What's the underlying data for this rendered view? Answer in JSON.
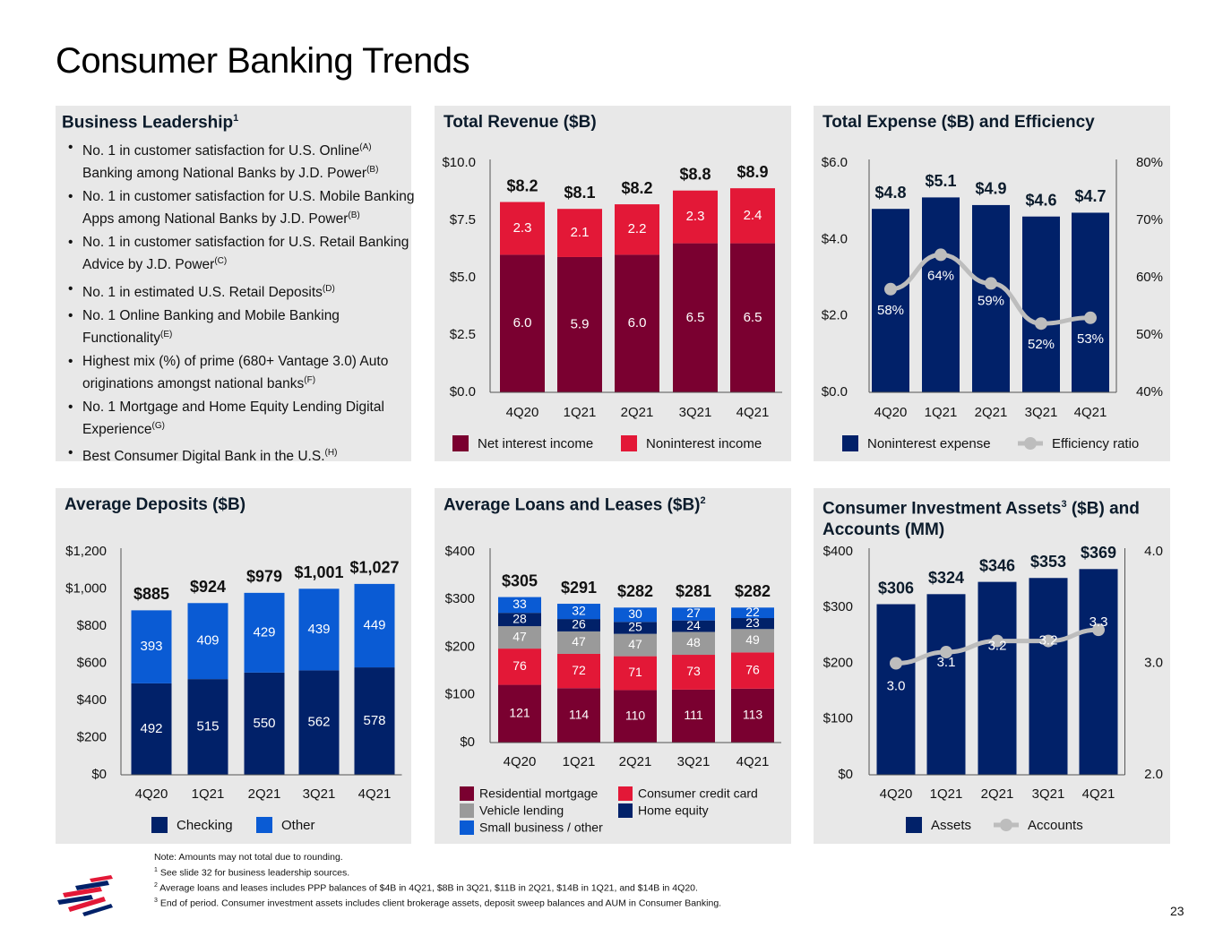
{
  "page": {
    "title": "Consumer Banking Trends",
    "page_number": "23"
  },
  "leadership": {
    "title": "Business Leadership",
    "title_sup": "1",
    "items": [
      {
        "text": "No. 1 in customer satisfaction for U.S. Online",
        "sup1": "(A)",
        "text2": " Banking among National Banks by J.D. Power",
        "sup2": "(B)"
      },
      {
        "text": "No. 1 in customer satisfaction for U.S. Mobile Banking Apps among National Banks by J.D. Power",
        "sup1": "(B)",
        "text2": "",
        "sup2": ""
      },
      {
        "text": "No. 1 in customer satisfaction for U.S. Retail Banking Advice by J.D. Power",
        "sup1": "(C)",
        "text2": "",
        "sup2": ""
      },
      {
        "text": "No. 1 in estimated U.S. Retail Deposits",
        "sup1": "(D)",
        "text2": "",
        "sup2": ""
      },
      {
        "text": "No. 1 Online Banking and Mobile Banking Functionality",
        "sup1": "(E)",
        "text2": "",
        "sup2": ""
      },
      {
        "text": "Highest mix (%) of prime (680+ Vantage 3.0) Auto originations amongst national banks",
        "sup1": "(F)",
        "text2": "",
        "sup2": ""
      },
      {
        "text": "No. 1 Mortgage and Home Equity Lending Digital Experience",
        "sup1": "(G)",
        "text2": "",
        "sup2": ""
      },
      {
        "text": "Best Consumer Digital Bank in the U.S.",
        "sup1": "(H)",
        "text2": "",
        "sup2": ""
      }
    ]
  },
  "notes": {
    "line0": "Note: Amounts may not total due to rounding.",
    "line1_sup": "1",
    "line1": " See slide 32 for business leadership sources.",
    "line2_sup": "2",
    "line2": " Average loans and leases includes PPP balances of $4B in 4Q21, $8B in 3Q21, $11B in 2Q21, $14B in 1Q21, and $14B in 4Q20.",
    "line3_sup": "3",
    "line3": " End of period. Consumer investment assets includes client brokerage assets, deposit sweep balances and AUM in Consumer Banking."
  },
  "colors": {
    "maroon": "#7a0030",
    "red": "#e31837",
    "navy": "#012169",
    "blue": "#0a5bd4",
    "gray": "#9a9a9a",
    "line_gray": "#bdbdbd",
    "panel_bg": "#e8e8e8"
  },
  "chart_data": [
    {
      "id": "revenue",
      "type": "bar",
      "stacked": true,
      "title": "Total Revenue ($B)",
      "categories": [
        "4Q20",
        "1Q21",
        "2Q21",
        "3Q21",
        "4Q21"
      ],
      "ylim": [
        0,
        10
      ],
      "yticks": [
        {
          "v": 0,
          "label": "$0.0"
        },
        {
          "v": 2.5,
          "label": "$2.5"
        },
        {
          "v": 5,
          "label": "$5.0"
        },
        {
          "v": 7.5,
          "label": "$7.5"
        },
        {
          "v": 10,
          "label": "$10.0"
        }
      ],
      "series": [
        {
          "name": "Net interest income",
          "color": "#7a0030",
          "values": [
            6.0,
            5.9,
            6.0,
            6.5,
            6.5
          ],
          "labels": [
            "6.0",
            "5.9",
            "6.0",
            "6.5",
            "6.5"
          ]
        },
        {
          "name": "Noninterest income",
          "color": "#e31837",
          "values": [
            2.3,
            2.1,
            2.2,
            2.3,
            2.4
          ],
          "labels": [
            "2.3",
            "2.1",
            "2.2",
            "2.3",
            "2.4"
          ]
        }
      ],
      "totals": [
        "$8.2",
        "$8.1",
        "$8.2",
        "$8.8",
        "$8.9"
      ],
      "legend": [
        {
          "label": "Net interest income",
          "color": "#7a0030"
        },
        {
          "label": "Noninterest income",
          "color": "#e31837"
        }
      ]
    },
    {
      "id": "expense",
      "type": "bar+line",
      "title": "Total Expense ($B) and Efficiency",
      "categories": [
        "4Q20",
        "1Q21",
        "2Q21",
        "3Q21",
        "4Q21"
      ],
      "ylim": [
        0,
        6
      ],
      "y2lim": [
        40,
        80
      ],
      "yticks": [
        {
          "v": 0,
          "label": "$0.0"
        },
        {
          "v": 2,
          "label": "$2.0"
        },
        {
          "v": 4,
          "label": "$4.0"
        },
        {
          "v": 6,
          "label": "$6.0"
        }
      ],
      "y2ticks": [
        {
          "v": 40,
          "label": "40%"
        },
        {
          "v": 50,
          "label": "50%"
        },
        {
          "v": 60,
          "label": "60%"
        },
        {
          "v": 70,
          "label": "70%"
        },
        {
          "v": 80,
          "label": "80%"
        }
      ],
      "series": [
        {
          "name": "Noninterest expense",
          "color": "#012169",
          "values": [
            4.8,
            5.1,
            4.9,
            4.6,
            4.7
          ],
          "labels": [
            "$4.8",
            "$5.1",
            "$4.9",
            "$4.6",
            "$4.7"
          ]
        }
      ],
      "line": {
        "name": "Efficiency ratio",
        "color": "#bdbdbd",
        "values": [
          58,
          64,
          59,
          52,
          53
        ],
        "labels": [
          "58%",
          "64%",
          "59%",
          "52%",
          "53%"
        ]
      },
      "legend": [
        {
          "label": "Noninterest expense",
          "color": "#012169"
        },
        {
          "label": "Efficiency ratio",
          "color": "#bdbdbd",
          "line": true
        }
      ]
    },
    {
      "id": "deposits",
      "type": "bar",
      "stacked": true,
      "title": "Average Deposits ($B)",
      "categories": [
        "4Q20",
        "1Q21",
        "2Q21",
        "3Q21",
        "4Q21"
      ],
      "ylim": [
        0,
        1200
      ],
      "yticks": [
        {
          "v": 0,
          "label": "$0"
        },
        {
          "v": 200,
          "label": "$200"
        },
        {
          "v": 400,
          "label": "$400"
        },
        {
          "v": 600,
          "label": "$600"
        },
        {
          "v": 800,
          "label": "$800"
        },
        {
          "v": 1000,
          "label": "$1,000"
        },
        {
          "v": 1200,
          "label": "$1,200"
        }
      ],
      "series": [
        {
          "name": "Checking",
          "color": "#012169",
          "values": [
            492,
            515,
            550,
            562,
            578
          ],
          "labels": [
            "492",
            "515",
            "550",
            "562",
            "578"
          ]
        },
        {
          "name": "Other",
          "color": "#0a5bd4",
          "values": [
            393,
            409,
            429,
            439,
            449
          ],
          "labels": [
            "393",
            "409",
            "429",
            "439",
            "449"
          ]
        }
      ],
      "totals": [
        "$885",
        "$924",
        "$979",
        "$1,001",
        "$1,027"
      ],
      "legend": [
        {
          "label": "Checking",
          "color": "#012169"
        },
        {
          "label": "Other",
          "color": "#0a5bd4"
        }
      ]
    },
    {
      "id": "loans",
      "type": "bar",
      "stacked": true,
      "title": "Average Loans and Leases ($B)",
      "title_sup": "2",
      "categories": [
        "4Q20",
        "1Q21",
        "2Q21",
        "3Q21",
        "4Q21"
      ],
      "ylim": [
        0,
        400
      ],
      "yticks": [
        {
          "v": 0,
          "label": "$0"
        },
        {
          "v": 100,
          "label": "$100"
        },
        {
          "v": 200,
          "label": "$200"
        },
        {
          "v": 300,
          "label": "$300"
        },
        {
          "v": 400,
          "label": "$400"
        }
      ],
      "series": [
        {
          "name": "Residential mortgage",
          "color": "#7a0030",
          "values": [
            121,
            114,
            110,
            111,
            113
          ],
          "labels": [
            "121",
            "114",
            "110",
            "111",
            "113"
          ]
        },
        {
          "name": "Consumer credit card",
          "color": "#e31837",
          "values": [
            76,
            72,
            71,
            73,
            76
          ],
          "labels": [
            "76",
            "72",
            "71",
            "73",
            "76"
          ]
        },
        {
          "name": "Vehicle lending",
          "color": "#9a9a9a",
          "values": [
            47,
            47,
            47,
            48,
            49
          ],
          "labels": [
            "47",
            "47",
            "47",
            "48",
            "49"
          ]
        },
        {
          "name": "Home equity",
          "color": "#012169",
          "values": [
            28,
            26,
            25,
            24,
            23
          ],
          "labels": [
            "28",
            "26",
            "25",
            "24",
            "23"
          ]
        },
        {
          "name": "Small business / other",
          "color": "#0a5bd4",
          "values": [
            33,
            32,
            30,
            27,
            22
          ],
          "labels": [
            "33",
            "32",
            "30",
            "27",
            "22"
          ]
        }
      ],
      "totals": [
        "$305",
        "$291",
        "$282",
        "$281",
        "$282"
      ],
      "legend": [
        {
          "label": "Residential mortgage",
          "color": "#7a0030"
        },
        {
          "label": "Consumer credit card",
          "color": "#e31837"
        },
        {
          "label": "Vehicle lending",
          "color": "#9a9a9a"
        },
        {
          "label": "Home equity",
          "color": "#012169"
        },
        {
          "label": "Small business / other",
          "color": "#0a5bd4"
        }
      ]
    },
    {
      "id": "investment",
      "type": "bar+line",
      "title": "Consumer Investment Assets",
      "title_sup": "3",
      "title_rest": " ($B) and",
      "title_line2": "Accounts (MM)",
      "categories": [
        "4Q20",
        "1Q21",
        "2Q21",
        "3Q21",
        "4Q21"
      ],
      "ylim": [
        0,
        400
      ],
      "y2lim": [
        2.0,
        4.0
      ],
      "yticks": [
        {
          "v": 0,
          "label": "$0"
        },
        {
          "v": 100,
          "label": "$100"
        },
        {
          "v": 200,
          "label": "$200"
        },
        {
          "v": 300,
          "label": "$300"
        },
        {
          "v": 400,
          "label": "$400"
        }
      ],
      "y2ticks": [
        {
          "v": 2.0,
          "label": "2.0"
        },
        {
          "v": 3.0,
          "label": "3.0"
        },
        {
          "v": 4.0,
          "label": "4.0"
        }
      ],
      "series": [
        {
          "name": "Assets",
          "color": "#012169",
          "values": [
            306,
            324,
            346,
            353,
            369
          ],
          "labels": [
            "$306",
            "$324",
            "$346",
            "$353",
            "$369"
          ]
        }
      ],
      "line": {
        "name": "Accounts",
        "color": "#bdbdbd",
        "values": [
          3.0,
          3.1,
          3.2,
          3.2,
          3.3
        ],
        "labels": [
          "3.0",
          "3.1",
          "3.2",
          "3.2",
          "3.3"
        ]
      },
      "legend": [
        {
          "label": "Assets",
          "color": "#012169"
        },
        {
          "label": "Accounts",
          "color": "#bdbdbd",
          "line": true
        }
      ]
    }
  ]
}
